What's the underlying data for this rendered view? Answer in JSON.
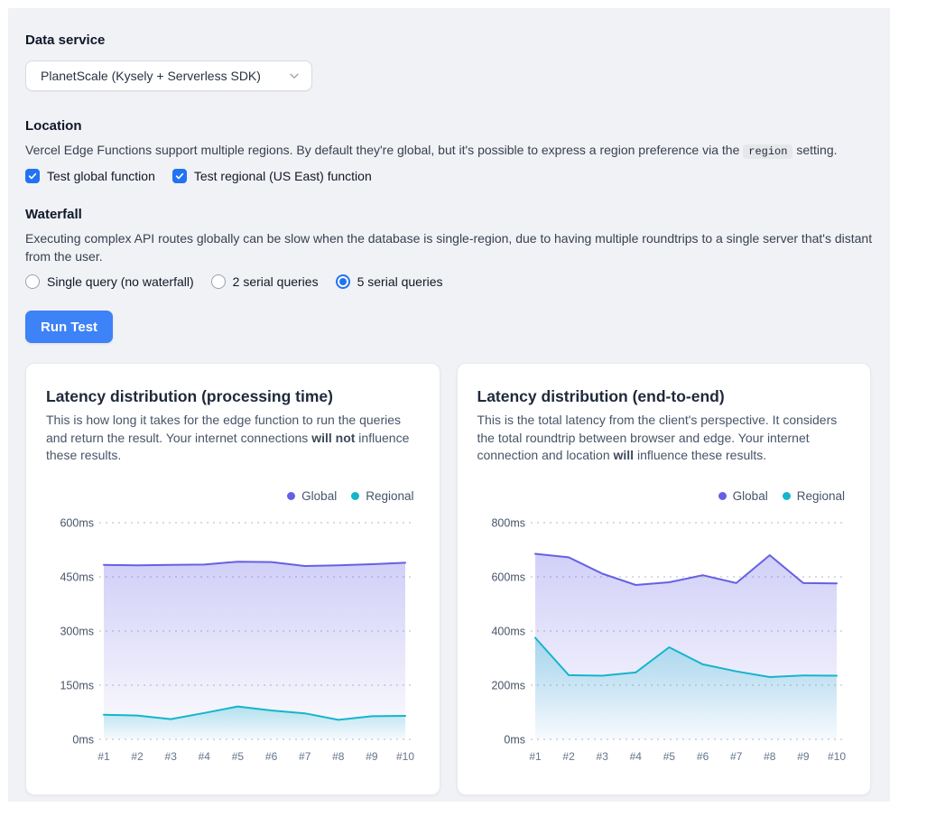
{
  "form": {
    "data_service": {
      "label": "Data service",
      "selected_option": "PlanetScale (Kysely + Serverless SDK)"
    },
    "location": {
      "label": "Location",
      "description_before": "Vercel Edge Functions support multiple regions. By default they're global, but it's possible to express a region preference via the",
      "code": "region",
      "description_after": "setting.",
      "checkboxes": [
        {
          "label": "Test global function",
          "checked": true
        },
        {
          "label": "Test regional (US East) function",
          "checked": true
        }
      ]
    },
    "waterfall": {
      "label": "Waterfall",
      "description": "Executing complex API routes globally can be slow when the database is single-region, due to having multiple roundtrips to a single server that's distant from the user.",
      "radios": [
        {
          "label": "Single query (no waterfall)",
          "selected": false
        },
        {
          "label": "2 serial queries",
          "selected": false
        },
        {
          "label": "5 serial queries",
          "selected": true
        }
      ]
    },
    "run_button_label": "Run Test"
  },
  "cards": [
    {
      "title": "Latency distribution (processing time)",
      "description": [
        {
          "text": "This is how long it takes for the edge function to run the queries and return the result. Your internet connections ",
          "bold": false
        },
        {
          "text": "will not",
          "bold": true
        },
        {
          "text": " influence these results.",
          "bold": false
        }
      ]
    },
    {
      "title": "Latency distribution (end-to-end)",
      "description": [
        {
          "text": "This is the total latency from the client's perspective. It considers the total roundtrip between browser and edge. Your internet connection and location ",
          "bold": false
        },
        {
          "text": "will",
          "bold": true
        },
        {
          "text": " influence these results.",
          "bold": false
        }
      ]
    }
  ],
  "chart_data": [
    {
      "type": "area",
      "title": "Latency distribution (processing time)",
      "categories": [
        "#1",
        "#2",
        "#3",
        "#4",
        "#5",
        "#6",
        "#7",
        "#8",
        "#9",
        "#10"
      ],
      "series": [
        {
          "name": "Global",
          "color": "#6660e4",
          "values": [
            483,
            482,
            483,
            484,
            492,
            491,
            480,
            482,
            485,
            489
          ]
        },
        {
          "name": "Regional",
          "color": "#15b5cc",
          "values": [
            68,
            66,
            56,
            73,
            91,
            80,
            72,
            54,
            64,
            65
          ]
        }
      ],
      "ylim": [
        0,
        600
      ],
      "yticks": [
        0,
        150,
        300,
        450,
        600
      ],
      "ytick_suffix": "ms",
      "grid": "dashed-horizontal",
      "legend_position": "top-right"
    },
    {
      "type": "area",
      "title": "Latency distribution (end-to-end)",
      "categories": [
        "#1",
        "#2",
        "#3",
        "#4",
        "#5",
        "#6",
        "#7",
        "#8",
        "#9",
        "#10"
      ],
      "series": [
        {
          "name": "Global",
          "color": "#6660e4",
          "values": [
            685,
            672,
            612,
            570,
            580,
            606,
            577,
            680,
            577,
            576
          ]
        },
        {
          "name": "Regional",
          "color": "#15b5cc",
          "values": [
            375,
            237,
            235,
            247,
            340,
            277,
            251,
            230,
            236,
            235
          ]
        }
      ],
      "ylim": [
        0,
        800
      ],
      "yticks": [
        0,
        200,
        400,
        600,
        800
      ],
      "ytick_suffix": "ms",
      "grid": "dashed-horizontal",
      "legend_position": "top-right"
    }
  ],
  "colors": {
    "accent_blue": "#2173f2",
    "button_blue": "#3d82f6",
    "global_series": "#6660e4",
    "regional_series": "#15b5cc",
    "panel_bg": "#f1f2f5"
  }
}
